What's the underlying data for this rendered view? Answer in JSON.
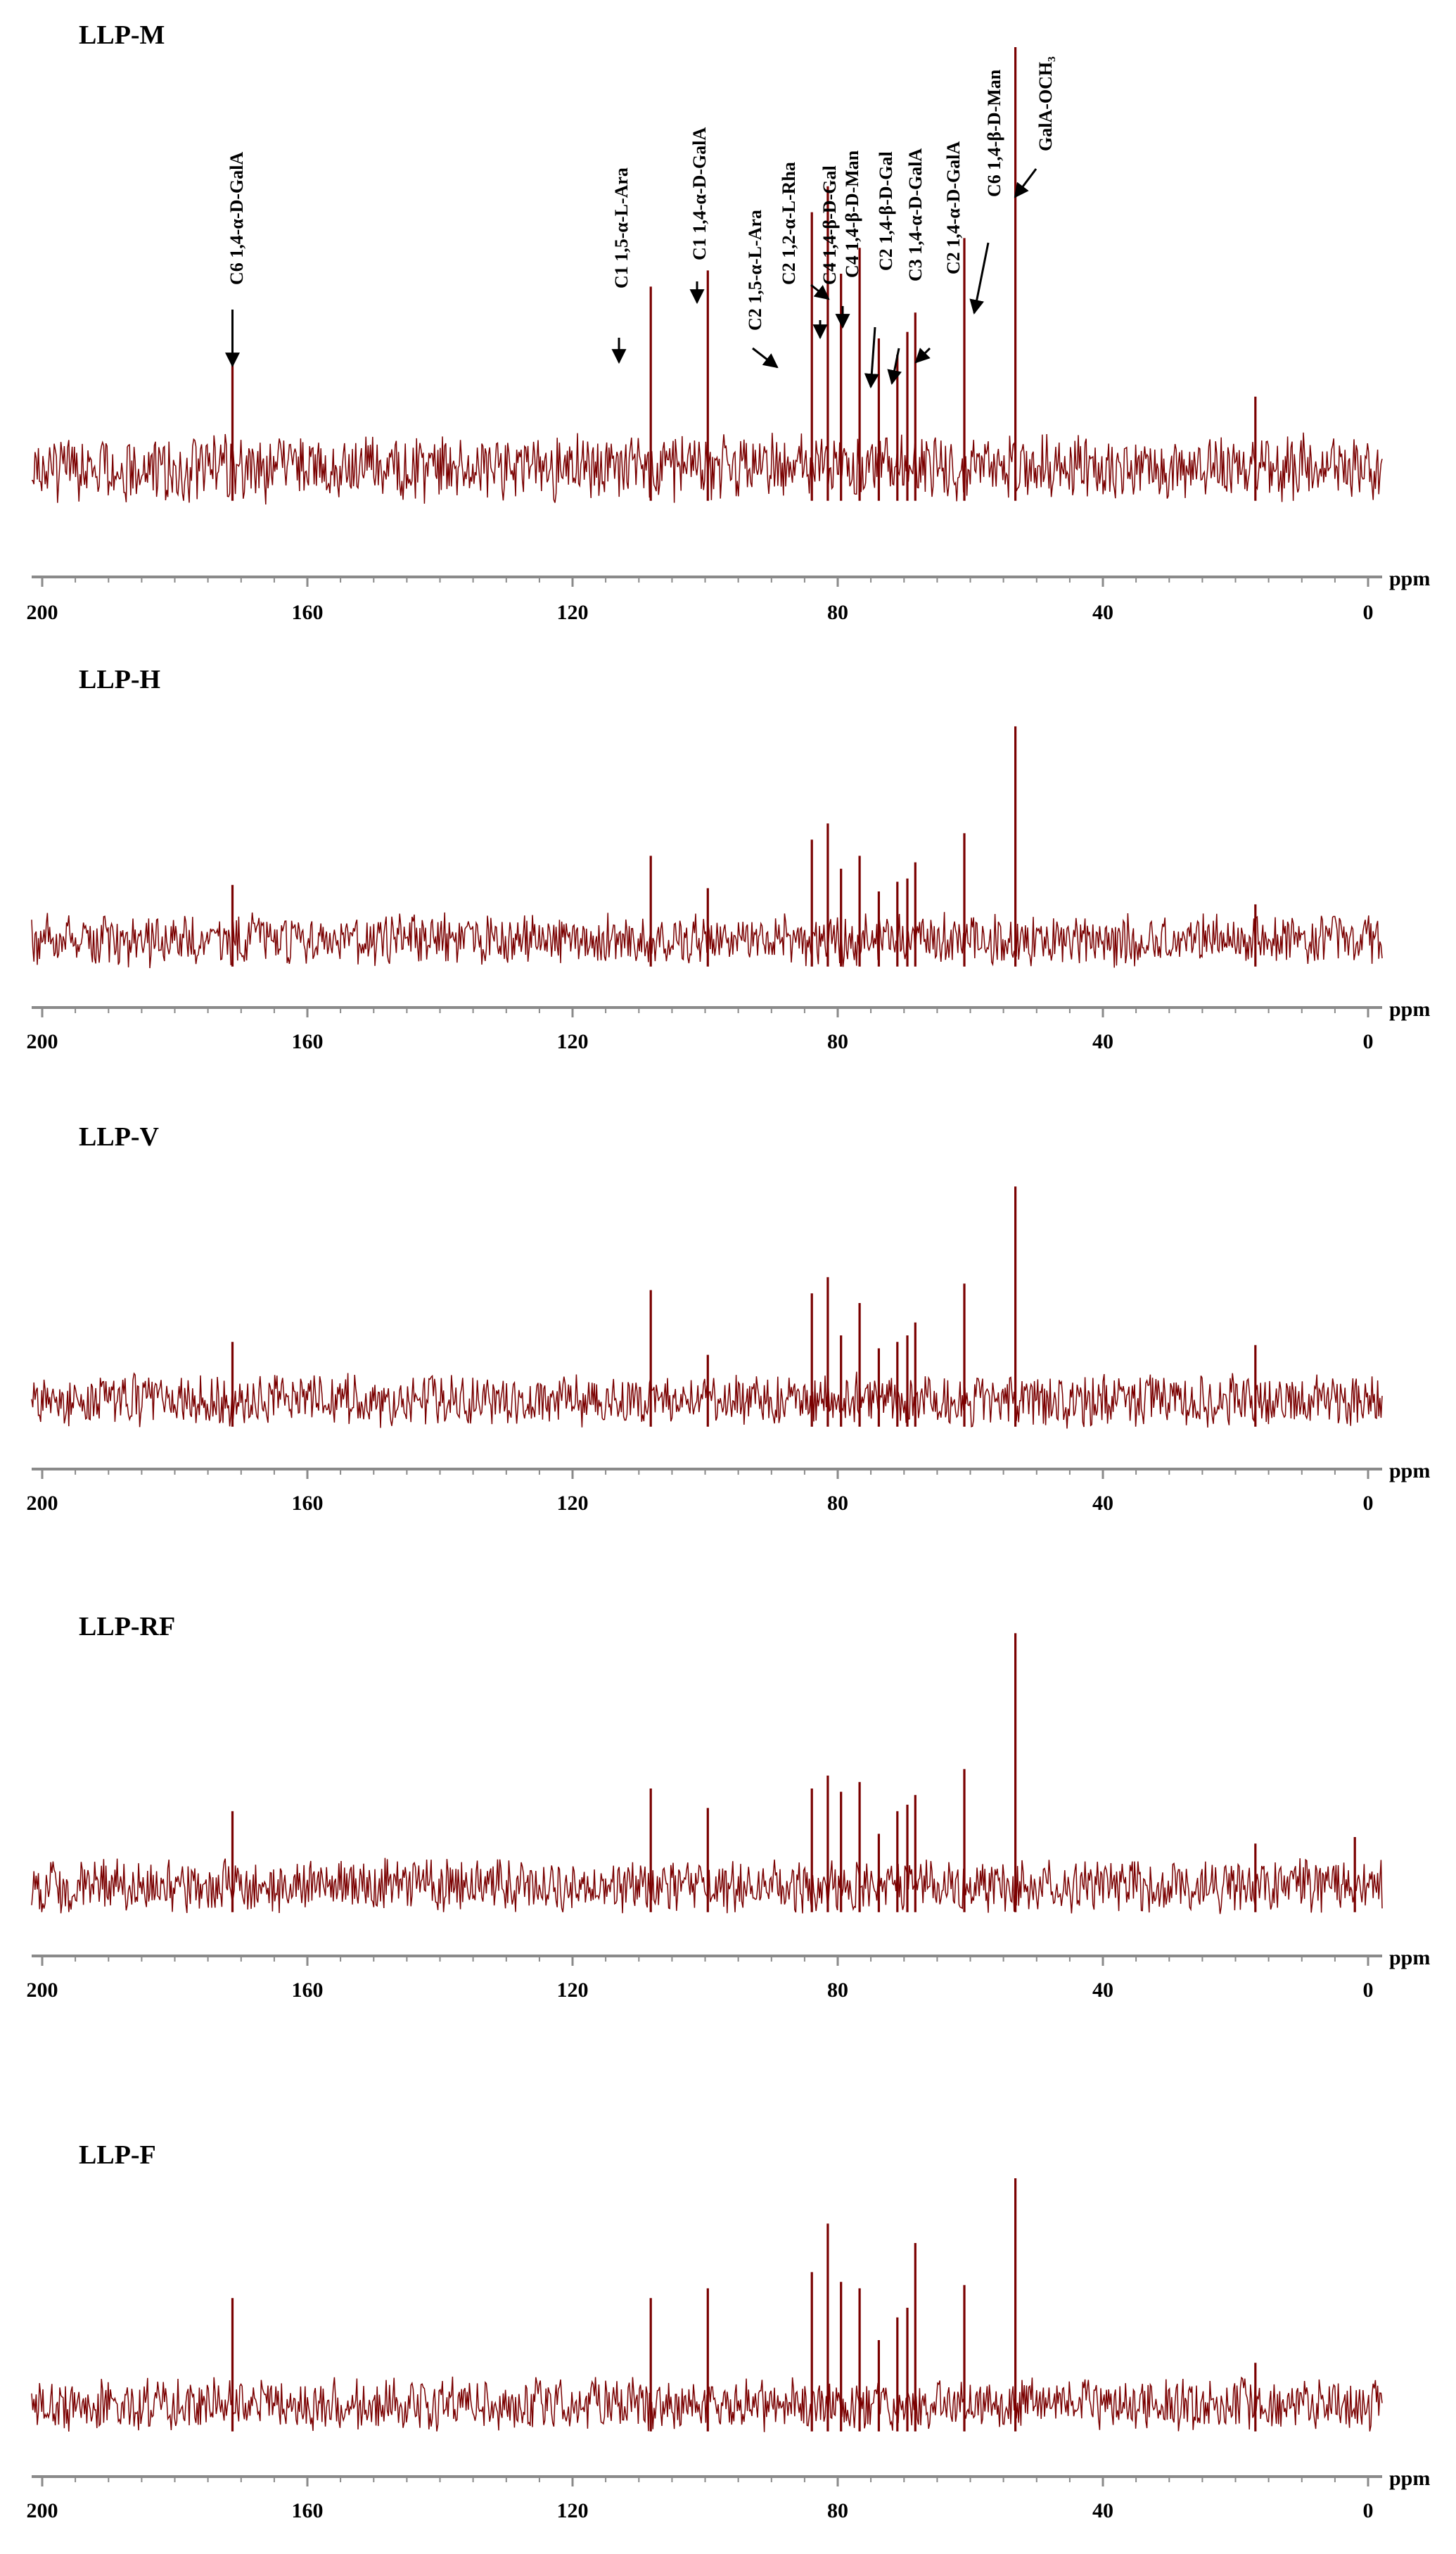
{
  "figure": {
    "accent_color": "#7a0000",
    "axis_color": "#8a8a8a",
    "text_color": "#000000",
    "arrow_color": "#000000"
  },
  "chart_data": [
    {
      "type": "line",
      "title": "LLP-M",
      "xlabel": "ppm",
      "xlim": [
        200,
        0
      ],
      "x_ticks": [
        200,
        160,
        120,
        80,
        40,
        0
      ],
      "x_tick_labels": [
        "200",
        "160",
        "120",
        "80",
        "40",
        "0"
      ],
      "x_reversed": true,
      "grid": false,
      "series": [
        {
          "peaks": [
            {
              "ppm": 171.3,
              "height": 0.34
            },
            {
              "ppm": 108.2,
              "height": 0.56
            },
            {
              "ppm": 99.6,
              "height": 0.61
            },
            {
              "ppm": 83.9,
              "height": 0.79
            },
            {
              "ppm": 81.5,
              "height": 0.87
            },
            {
              "ppm": 79.5,
              "height": 0.6
            },
            {
              "ppm": 76.7,
              "height": 0.68
            },
            {
              "ppm": 73.8,
              "height": 0.4
            },
            {
              "ppm": 71.0,
              "height": 0.35
            },
            {
              "ppm": 69.5,
              "height": 0.42
            },
            {
              "ppm": 68.3,
              "height": 0.48
            },
            {
              "ppm": 60.9,
              "height": 0.71
            },
            {
              "ppm": 53.2,
              "height": 1.3
            },
            {
              "ppm": 17.0,
              "height": 0.22
            }
          ]
        }
      ],
      "annotations": [
        {
          "text": "C6 1,4-α-D-GalA",
          "ppm": 171.3
        },
        {
          "text": "C1 1,5-α-L-Ara",
          "ppm": 108.2
        },
        {
          "text": "C1 1,4-α-D-GalA",
          "ppm": 99.6
        },
        {
          "text": "C2 1,5-α-L-Ara",
          "ppm": 83.9
        },
        {
          "text": "C2 1,2-α-L-Rha",
          "ppm": 81.5
        },
        {
          "text": "C4 1,4-β-D-Gal",
          "ppm": 79.5
        },
        {
          "text": "C4 1,4-β-D-Man",
          "ppm": 76.7
        },
        {
          "text": "C2 1,4-β-D-Gal",
          "ppm": 73.8
        },
        {
          "text": "C3 1,4-α-D-GalA",
          "ppm": 70.8
        },
        {
          "text": "C2 1,4-α-D-GalA",
          "ppm": 68.3
        },
        {
          "text": "C6 1,4-β-D-Man",
          "ppm": 60.9
        },
        {
          "text": "GalA-OCH₃",
          "ppm": 53.2
        }
      ]
    },
    {
      "type": "line",
      "title": "LLP-H",
      "xlabel": "ppm",
      "xlim": [
        200,
        0
      ],
      "x_ticks": [
        200,
        160,
        120,
        80,
        40,
        0
      ],
      "x_tick_labels": [
        "200",
        "160",
        "120",
        "80",
        "40",
        "0"
      ],
      "x_reversed": true,
      "grid": false,
      "series": [
        {
          "peaks": [
            {
              "ppm": 171.3,
              "height": 0.17
            },
            {
              "ppm": 108.2,
              "height": 0.26
            },
            {
              "ppm": 99.6,
              "height": 0.16
            },
            {
              "ppm": 83.9,
              "height": 0.31
            },
            {
              "ppm": 81.5,
              "height": 0.36
            },
            {
              "ppm": 79.5,
              "height": 0.22
            },
            {
              "ppm": 76.7,
              "height": 0.26
            },
            {
              "ppm": 73.8,
              "height": 0.15
            },
            {
              "ppm": 71.0,
              "height": 0.18
            },
            {
              "ppm": 69.5,
              "height": 0.19
            },
            {
              "ppm": 68.3,
              "height": 0.24
            },
            {
              "ppm": 60.9,
              "height": 0.33
            },
            {
              "ppm": 53.2,
              "height": 0.66
            },
            {
              "ppm": 17.0,
              "height": 0.11
            }
          ]
        }
      ]
    },
    {
      "type": "line",
      "title": "LLP-V",
      "xlabel": "ppm",
      "xlim": [
        200,
        0
      ],
      "x_ticks": [
        200,
        160,
        120,
        80,
        40,
        0
      ],
      "x_tick_labels": [
        "200",
        "160",
        "120",
        "80",
        "40",
        "0"
      ],
      "x_reversed": true,
      "grid": false,
      "series": [
        {
          "peaks": [
            {
              "ppm": 171.3,
              "height": 0.18
            },
            {
              "ppm": 108.2,
              "height": 0.34
            },
            {
              "ppm": 99.6,
              "height": 0.14
            },
            {
              "ppm": 83.9,
              "height": 0.33
            },
            {
              "ppm": 81.5,
              "height": 0.38
            },
            {
              "ppm": 79.5,
              "height": 0.2
            },
            {
              "ppm": 76.7,
              "height": 0.3
            },
            {
              "ppm": 73.8,
              "height": 0.16
            },
            {
              "ppm": 71.0,
              "height": 0.18
            },
            {
              "ppm": 69.5,
              "height": 0.2
            },
            {
              "ppm": 68.3,
              "height": 0.24
            },
            {
              "ppm": 60.9,
              "height": 0.36
            },
            {
              "ppm": 53.2,
              "height": 0.66
            },
            {
              "ppm": 17.0,
              "height": 0.17
            }
          ]
        }
      ]
    },
    {
      "type": "line",
      "title": "LLP-RF",
      "xlabel": "ppm",
      "xlim": [
        200,
        0
      ],
      "x_ticks": [
        200,
        160,
        120,
        80,
        40,
        0
      ],
      "x_tick_labels": [
        "200",
        "160",
        "120",
        "80",
        "40",
        "0"
      ],
      "x_reversed": true,
      "grid": false,
      "series": [
        {
          "peaks": [
            {
              "ppm": 171.3,
              "height": 0.23
            },
            {
              "ppm": 108.2,
              "height": 0.3
            },
            {
              "ppm": 99.6,
              "height": 0.24
            },
            {
              "ppm": 83.9,
              "height": 0.3
            },
            {
              "ppm": 81.5,
              "height": 0.34
            },
            {
              "ppm": 79.5,
              "height": 0.29
            },
            {
              "ppm": 76.7,
              "height": 0.32
            },
            {
              "ppm": 73.8,
              "height": 0.16
            },
            {
              "ppm": 71.0,
              "height": 0.23
            },
            {
              "ppm": 69.5,
              "height": 0.25
            },
            {
              "ppm": 68.3,
              "height": 0.28
            },
            {
              "ppm": 60.9,
              "height": 0.36
            },
            {
              "ppm": 53.2,
              "height": 0.78
            },
            {
              "ppm": 17.0,
              "height": 0.13
            },
            {
              "ppm": 2.0,
              "height": 0.15
            }
          ]
        }
      ]
    },
    {
      "type": "line",
      "title": "LLP-F",
      "xlabel": "ppm",
      "xlim": [
        200,
        0
      ],
      "x_ticks": [
        200,
        160,
        120,
        80,
        40,
        0
      ],
      "x_tick_labels": [
        "200",
        "160",
        "120",
        "80",
        "40",
        "0"
      ],
      "x_reversed": true,
      "grid": false,
      "series": [
        {
          "peaks": [
            {
              "ppm": 171.3,
              "height": 0.33
            },
            {
              "ppm": 108.2,
              "height": 0.33
            },
            {
              "ppm": 99.6,
              "height": 0.36
            },
            {
              "ppm": 83.9,
              "height": 0.41
            },
            {
              "ppm": 81.5,
              "height": 0.56
            },
            {
              "ppm": 79.5,
              "height": 0.38
            },
            {
              "ppm": 76.7,
              "height": 0.36
            },
            {
              "ppm": 73.8,
              "height": 0.2
            },
            {
              "ppm": 71.0,
              "height": 0.27
            },
            {
              "ppm": 69.5,
              "height": 0.3
            },
            {
              "ppm": 68.3,
              "height": 0.5
            },
            {
              "ppm": 60.9,
              "height": 0.37
            },
            {
              "ppm": 53.2,
              "height": 0.7
            },
            {
              "ppm": 17.0,
              "height": 0.13
            }
          ]
        }
      ]
    }
  ]
}
